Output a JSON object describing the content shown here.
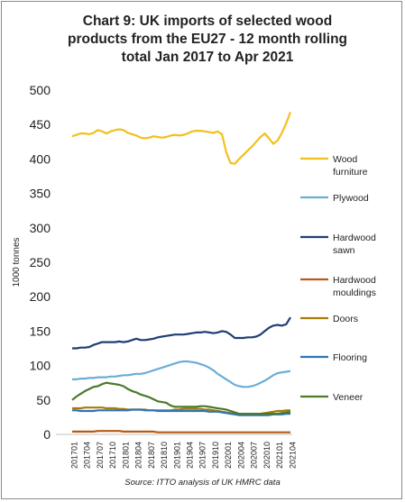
{
  "chart_data": {
    "type": "line",
    "title_lines": [
      "Chart 9: UK imports of selected wood",
      "products from the EU27 - 12 month rolling",
      "total Jan 2017 to Apr 2021"
    ],
    "ylabel": "1000 tonnes",
    "xlabel": "",
    "source": "Source: ITTO analysis of UK HMRC data",
    "ylim": [
      0,
      500
    ],
    "yticks": [
      0,
      50,
      100,
      150,
      200,
      250,
      300,
      350,
      400,
      450,
      500
    ],
    "grid": false,
    "legend_position": "right",
    "x_labels": [
      "201701",
      "201704",
      "201707",
      "201710",
      "201801",
      "201804",
      "201807",
      "201810",
      "201901",
      "201904",
      "201907",
      "201910",
      "202001",
      "202004",
      "202007",
      "202010",
      "202101",
      "202104"
    ],
    "x_label_index": [
      0,
      3,
      6,
      9,
      12,
      15,
      18,
      21,
      24,
      27,
      30,
      33,
      36,
      39,
      42,
      45,
      48,
      51
    ],
    "n_points": 52,
    "series": [
      {
        "name": "Wood furniture",
        "legend_lines": [
          "Wood",
          "furniture"
        ],
        "color": "#f2c01e",
        "values": [
          433,
          435,
          437,
          437,
          436,
          438,
          442,
          440,
          437,
          440,
          442,
          443,
          442,
          438,
          436,
          434,
          431,
          430,
          431,
          433,
          432,
          431,
          432,
          434,
          435,
          434,
          435,
          437,
          440,
          441,
          441,
          440,
          439,
          438,
          440,
          436,
          410,
          394,
          393,
          400,
          406,
          412,
          418,
          425,
          432,
          437,
          430,
          422,
          427,
          438,
          452,
          468
        ]
      },
      {
        "name": "Plywood",
        "legend_lines": [
          "Plywood"
        ],
        "color": "#6aaed6",
        "values": [
          80,
          80,
          81,
          81,
          82,
          82,
          83,
          83,
          83,
          84,
          84,
          85,
          86,
          86,
          87,
          88,
          88,
          89,
          91,
          93,
          95,
          97,
          99,
          101,
          103,
          105,
          106,
          106,
          105,
          104,
          102,
          100,
          97,
          93,
          88,
          84,
          80,
          76,
          72,
          70,
          69,
          69,
          70,
          72,
          75,
          78,
          82,
          86,
          89,
          90,
          91,
          92
        ]
      },
      {
        "name": "Hardwood sawn",
        "legend_lines": [
          "Hardwood",
          "sawn"
        ],
        "color": "#1f3e74",
        "values": [
          125,
          125,
          126,
          126,
          127,
          130,
          132,
          134,
          134,
          134,
          134,
          135,
          134,
          135,
          137,
          139,
          137,
          137,
          138,
          139,
          141,
          142,
          143,
          144,
          145,
          145,
          145,
          146,
          147,
          148,
          148,
          149,
          148,
          147,
          148,
          150,
          149,
          145,
          140,
          140,
          140,
          141,
          141,
          142,
          145,
          150,
          155,
          158,
          159,
          158,
          160,
          170
        ]
      },
      {
        "name": "Hardwood mouldings",
        "legend_lines": [
          "Hardwood",
          "mouldings"
        ],
        "color": "#b85a14",
        "values": [
          4,
          4,
          4,
          4,
          4,
          4,
          5,
          5,
          5,
          5,
          5,
          5,
          4,
          4,
          4,
          4,
          4,
          4,
          4,
          4,
          3,
          3,
          3,
          3,
          3,
          3,
          3,
          3,
          3,
          3,
          3,
          3,
          3,
          3,
          3,
          3,
          3,
          3,
          3,
          3,
          3,
          3,
          3,
          3,
          3,
          3,
          3,
          3,
          3,
          3,
          3,
          3
        ]
      },
      {
        "name": "Doors",
        "legend_lines": [
          "Doors"
        ],
        "color": "#a67c0a",
        "values": [
          38,
          38,
          38,
          39,
          39,
          39,
          39,
          39,
          38,
          38,
          38,
          37,
          37,
          36,
          36,
          36,
          36,
          36,
          35,
          35,
          35,
          35,
          35,
          35,
          36,
          36,
          37,
          37,
          37,
          37,
          37,
          36,
          36,
          35,
          34,
          33,
          32,
          31,
          30,
          30,
          30,
          30,
          30,
          30,
          30,
          31,
          32,
          33,
          34,
          34,
          35,
          35
        ]
      },
      {
        "name": "Flooring",
        "legend_lines": [
          "Flooring"
        ],
        "color": "#2e74b5",
        "values": [
          35,
          35,
          34,
          34,
          34,
          34,
          35,
          35,
          35,
          35,
          35,
          35,
          35,
          35,
          36,
          36,
          36,
          35,
          35,
          35,
          34,
          34,
          34,
          34,
          34,
          34,
          34,
          34,
          34,
          34,
          34,
          34,
          33,
          33,
          33,
          32,
          31,
          30,
          29,
          28,
          28,
          28,
          28,
          28,
          28,
          28,
          28,
          29,
          29,
          29,
          30,
          30
        ]
      },
      {
        "name": "Veneer",
        "legend_lines": [
          "Veneer"
        ],
        "color": "#4a7a2a",
        "values": [
          50,
          55,
          59,
          63,
          66,
          69,
          70,
          73,
          75,
          74,
          73,
          72,
          70,
          66,
          63,
          61,
          58,
          56,
          54,
          51,
          48,
          47,
          46,
          42,
          40,
          40,
          40,
          40,
          40,
          40,
          41,
          41,
          40,
          39,
          38,
          37,
          36,
          34,
          32,
          30,
          30,
          30,
          30,
          30,
          30,
          30,
          30,
          30,
          30,
          31,
          32,
          33
        ]
      }
    ]
  }
}
